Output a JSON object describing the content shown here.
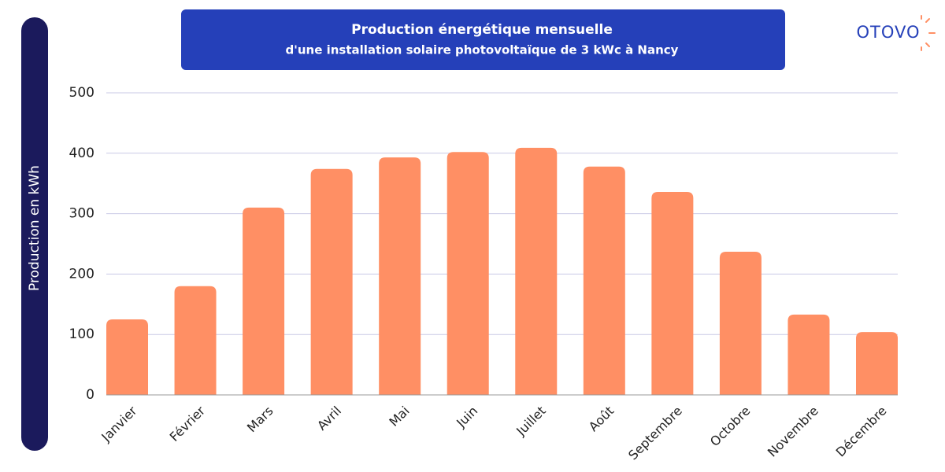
{
  "brand": "OTOVO",
  "chart_data": {
    "type": "bar",
    "title": "Production énergétique mensuelle",
    "subtitle": "d'une installation solaire photovoltaïque de 3 kWc à Nancy",
    "y_label": "Production en kWh",
    "categories": [
      "Janvier",
      "Février",
      "Mars",
      "Avril",
      "Mai",
      "Juin",
      "Juillet",
      "Août",
      "Septembre",
      "Octobre",
      "Novembre",
      "Décembre"
    ],
    "values": [
      125,
      180,
      310,
      374,
      393,
      402,
      409,
      378,
      336,
      237,
      133,
      104
    ],
    "color": "#ff8f64",
    "ylim": [
      0,
      500
    ],
    "yticks": [
      0,
      100,
      200,
      300,
      400,
      500
    ],
    "grid": true
  }
}
